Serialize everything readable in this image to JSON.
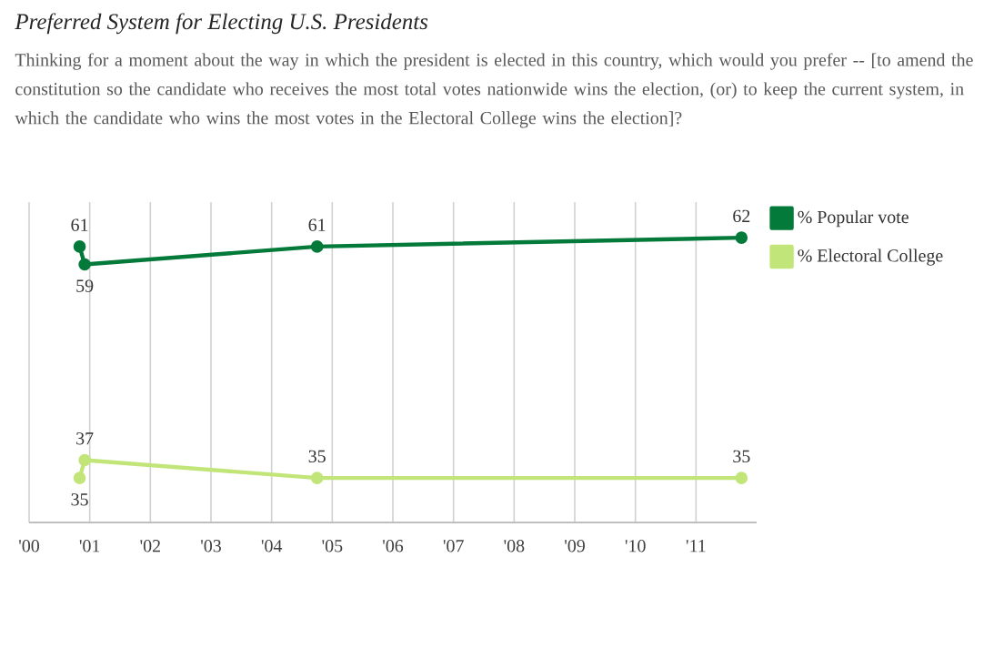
{
  "chart_data": {
    "type": "line",
    "title": "Preferred System for Electing U.S. Presidents",
    "subtitle": "Thinking for a moment about the way in which the president is elected in this country, which would you prefer -- [to amend the constitution so the candidate who receives the most total votes nationwide wins the election, (or) to keep the current system, in which the candidate who wins the most votes in the Electoral College wins the election]?",
    "x": [
      "2000-11",
      "2000-12",
      "2004-10",
      "2011-10"
    ],
    "series": [
      {
        "name": "% Popular vote",
        "color": "#047a3a",
        "values": [
          61,
          59,
          61,
          62
        ]
      },
      {
        "name": "% Electoral College",
        "color": "#c2e57a",
        "values": [
          35,
          37,
          35,
          35
        ]
      }
    ],
    "xlim": [
      "2000",
      "2012"
    ],
    "xticks": [
      {
        "value": "2000",
        "label": "'00"
      },
      {
        "value": "2001",
        "label": "'01"
      },
      {
        "value": "2002",
        "label": "'02"
      },
      {
        "value": "2003",
        "label": "'03"
      },
      {
        "value": "2004",
        "label": "'04"
      },
      {
        "value": "2005",
        "label": "'05"
      },
      {
        "value": "2006",
        "label": "'06"
      },
      {
        "value": "2007",
        "label": "'07"
      },
      {
        "value": "2008",
        "label": "'08"
      },
      {
        "value": "2009",
        "label": "'09"
      },
      {
        "value": "2010",
        "label": "'10"
      },
      {
        "value": "2011",
        "label": "'11"
      }
    ],
    "ylim": [
      30,
      66
    ],
    "tick_labels": "x",
    "grid": "x",
    "legend": "top right",
    "marker": "circle",
    "line_style": "solid",
    "data_labels": true
  }
}
